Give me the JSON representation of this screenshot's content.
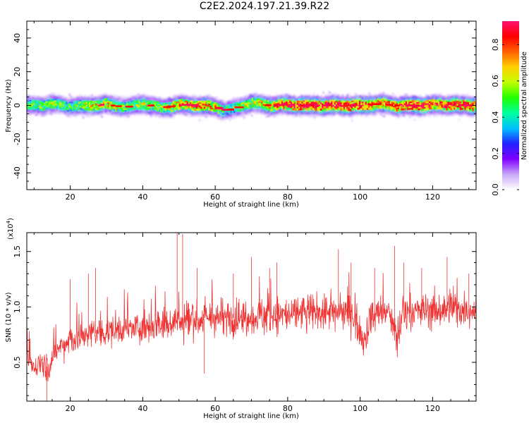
{
  "figure": {
    "title": "C2E2.2024.197.21.39.R22"
  },
  "chart_data": [
    {
      "type": "heatmap",
      "xlabel": "Height of straight line (km)",
      "ylabel": "Frequency (Hz)",
      "xlim": [
        8,
        132
      ],
      "ylim": [
        -50,
        50
      ],
      "x_ticks": [
        20,
        40,
        60,
        80,
        100,
        120
      ],
      "y_ticks": [
        -40,
        -20,
        0,
        20,
        40
      ],
      "grid": false,
      "colorbar": {
        "label": "Normalized spectral amplitude",
        "range": [
          0.0,
          0.93
        ],
        "ticks": [
          0.0,
          0.2,
          0.4,
          0.6,
          0.8
        ],
        "colormap": [
          "#ffffff",
          "#c8a8f8",
          "#8000ff",
          "#2020ff",
          "#00c0ff",
          "#00ffa0",
          "#20ff00",
          "#c0ff00",
          "#ffd000",
          "#ff6000",
          "#ff0000",
          "#ff1070"
        ]
      },
      "ridge": {
        "description_x": [
          10,
          15,
          20,
          25,
          30,
          35,
          40,
          45,
          50,
          55,
          60,
          63,
          66,
          70,
          75,
          80,
          85,
          90,
          95,
          100,
          105,
          110,
          115,
          120,
          125,
          130
        ],
        "center_freq": [
          0,
          1,
          -0.5,
          0,
          0.5,
          -1,
          1,
          -1.5,
          0.5,
          0,
          -1,
          -3,
          -1,
          1.5,
          0,
          0.5,
          0,
          0,
          0,
          0,
          1,
          0,
          0,
          0.5,
          0.5,
          0
        ],
        "peak_amplitude": [
          0.5,
          0.55,
          0.45,
          0.6,
          0.65,
          0.5,
          0.6,
          0.55,
          0.7,
          0.75,
          0.65,
          0.45,
          0.5,
          0.6,
          0.7,
          0.8,
          0.9,
          0.85,
          0.9,
          0.85,
          0.75,
          0.8,
          0.9,
          0.8,
          0.8,
          0.85
        ]
      }
    },
    {
      "type": "line",
      "xlabel": "Height of straight line (km)",
      "ylabel": "SNR (10 * v/v)",
      "y_scale_label": "(x10",
      "y_scale_exp": "4",
      "y_scale_close": ")",
      "xlim": [
        8,
        132
      ],
      "ylim": [
        0.15,
        1.67
      ],
      "x_ticks": [
        20,
        40,
        60,
        80,
        100,
        120
      ],
      "y_ticks": [
        0.5,
        1.0,
        1.5
      ],
      "y_tick_labels": [
        "0.5",
        "1.0",
        "1.5"
      ],
      "grid": false,
      "series": [
        {
          "color": "#ee3333",
          "trend_x": [
            8,
            10,
            12,
            14,
            16,
            20,
            25,
            30,
            35,
            40,
            45,
            50,
            55,
            60,
            65,
            70,
            75,
            80,
            85,
            90,
            95,
            98,
            100,
            101,
            103,
            105,
            108,
            110,
            112,
            115,
            120,
            125,
            130,
            132
          ],
          "trend_y": [
            0.55,
            0.45,
            0.5,
            0.45,
            0.6,
            0.7,
            0.75,
            0.78,
            0.8,
            0.82,
            0.86,
            0.88,
            0.88,
            0.9,
            0.9,
            0.92,
            0.93,
            0.93,
            0.95,
            0.95,
            0.96,
            0.95,
            0.75,
            0.7,
            0.9,
            0.95,
            0.95,
            0.7,
            0.95,
            0.96,
            0.97,
            0.98,
            0.98,
            0.98
          ],
          "spike_x": [
            13.5,
            20,
            25,
            27,
            49.5,
            51,
            55,
            57,
            65,
            70,
            75,
            77,
            94,
            97.5,
            100,
            104,
            109.5,
            112,
            117,
            124,
            130
          ],
          "spike_y": [
            0.15,
            1.25,
            1.3,
            1.35,
            1.67,
            1.66,
            1.35,
            0.4,
            1.3,
            1.45,
            1.35,
            1.4,
            1.52,
            1.4,
            0.8,
            1.35,
            1.55,
            1.4,
            1.35,
            1.45,
            1.3
          ]
        }
      ]
    }
  ]
}
